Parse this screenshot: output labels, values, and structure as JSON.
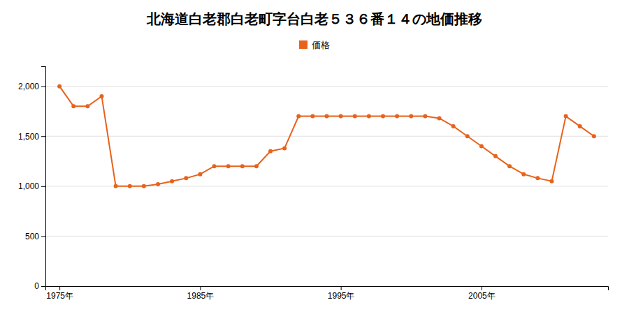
{
  "chart_data": {
    "type": "line",
    "title": "北海道白老郡白老町字台白老５３６番１４の地価推移",
    "x": [
      1975,
      1976,
      1977,
      1978,
      1979,
      1980,
      1981,
      1982,
      1983,
      1984,
      1985,
      1986,
      1987,
      1988,
      1989,
      1990,
      1991,
      1992,
      1993,
      1994,
      1995,
      1996,
      1997,
      1998,
      1999,
      2000,
      2001,
      2002,
      2003,
      2004,
      2005,
      2006,
      2007,
      2008,
      2009,
      2010,
      2011,
      2012,
      2013
    ],
    "series": [
      {
        "name": "価格",
        "color": "#E8621A",
        "marker": "circle",
        "values": [
          2000,
          1800,
          1800,
          1900,
          1000,
          1000,
          1000,
          1020,
          1050,
          1080,
          1120,
          1200,
          1200,
          1200,
          1200,
          1350,
          1380,
          1700,
          1700,
          1700,
          1700,
          1700,
          1700,
          1700,
          1700,
          1700,
          1700,
          1680,
          1600,
          1500,
          1400,
          1300,
          1200,
          1120,
          1080,
          1050,
          1700,
          1600,
          1500
        ]
      }
    ],
    "xlim": [
      1974,
      2014
    ],
    "xticks": [
      {
        "value": 1975,
        "label": "1975年"
      },
      {
        "value": 1985,
        "label": "1985年"
      },
      {
        "value": 1995,
        "label": "1995年"
      },
      {
        "value": 2005,
        "label": "2005年"
      }
    ],
    "ylim": [
      0,
      2200
    ],
    "yticks": [
      0,
      500,
      {
        "value": 1000,
        "label": "1,000"
      },
      {
        "value": 1500,
        "label": "1,500"
      },
      {
        "value": 2000,
        "label": "2,000"
      }
    ],
    "grid": true,
    "legend": "top"
  }
}
